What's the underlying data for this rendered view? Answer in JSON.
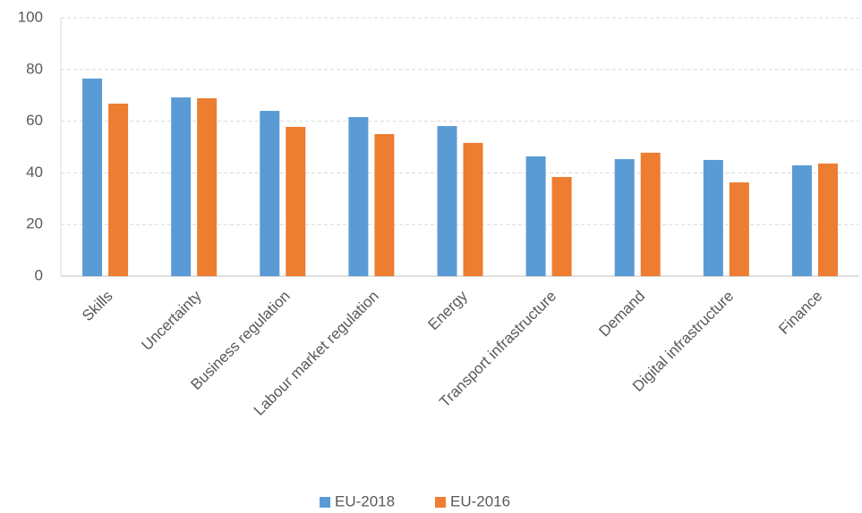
{
  "chart_data": {
    "type": "bar",
    "categories": [
      "Skills",
      "Uncertainty",
      "Business regulation",
      "Labour market regulation",
      "Energy",
      "Transport infrastructure",
      "Demand",
      "Digital infrastructure",
      "Finance"
    ],
    "series": [
      {
        "name": "EU-2018",
        "color": "#5b9bd5",
        "values": [
          76.5,
          69.2,
          64,
          61.6,
          58.1,
          46.4,
          45.3,
          45,
          42.9
        ]
      },
      {
        "name": "EU-2016",
        "color": "#ed7d31",
        "values": [
          66.8,
          68.9,
          57.8,
          55,
          51.6,
          38.4,
          47.8,
          36.3,
          43.6
        ]
      }
    ],
    "ylim": [
      0,
      100
    ],
    "yticks": [
      0,
      20,
      40,
      60,
      80,
      100
    ],
    "grid": true,
    "legend": "bottom"
  }
}
